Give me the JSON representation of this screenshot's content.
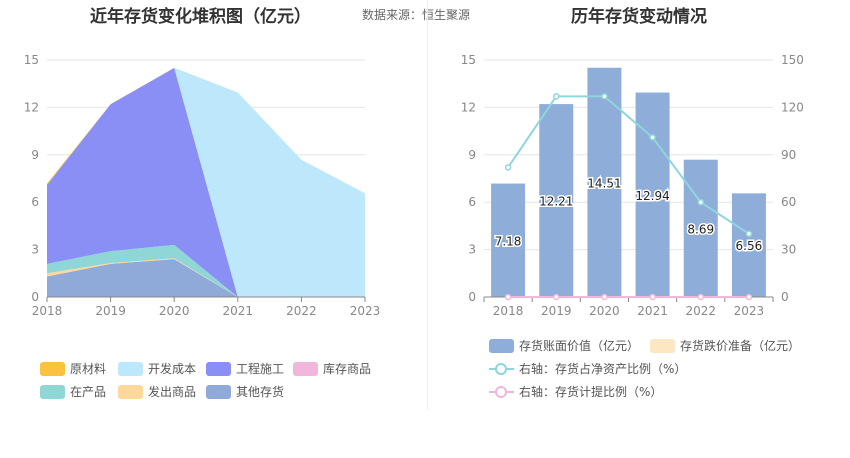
{
  "header": {
    "left_title": "近年存货变化堆积图（亿元）",
    "source": "数据来源：恒生聚源",
    "right_title": "历年存货变动情况"
  },
  "chart_data": [
    {
      "type": "area",
      "stacked": true,
      "title": "近年存货变化堆积图（亿元）",
      "x": [
        "2018",
        "2019",
        "2020",
        "2021",
        "2022",
        "2023"
      ],
      "ylim": [
        0,
        15
      ],
      "yticks": [
        "0",
        "3",
        "6",
        "9",
        "12",
        "15"
      ],
      "grid": true,
      "legend_position": "bottom",
      "series": [
        {
          "name": "其他存货",
          "color": "#8fa9d9",
          "values": [
            1.3,
            2.1,
            2.4,
            0,
            0,
            0
          ]
        },
        {
          "name": "发出商品",
          "color": "#fcd89a",
          "values": [
            0.2,
            0.05,
            0.05,
            0,
            0,
            0
          ]
        },
        {
          "name": "在产品",
          "color": "#8fd6d6",
          "values": [
            0.6,
            0.75,
            0.85,
            0,
            0,
            0
          ]
        },
        {
          "name": "库存商品",
          "color": "#f0b6dc",
          "values": [
            0,
            0,
            0,
            0,
            0,
            0
          ]
        },
        {
          "name": "工程施工",
          "color": "#8a8ff5",
          "values": [
            5.0,
            9.3,
            11.2,
            0,
            0,
            0
          ]
        },
        {
          "name": "开发成本",
          "color": "#bde8fb",
          "values": [
            0,
            0,
            0,
            12.94,
            8.69,
            6.56
          ]
        },
        {
          "name": "原材料",
          "color": "#fbc23d",
          "values": [
            0.08,
            0.01,
            0.01,
            0,
            0,
            0
          ]
        }
      ],
      "legend_order": [
        "原材料",
        "开发成本",
        "工程施工",
        "库存商品",
        "在产品",
        "发出商品",
        "其他存货"
      ]
    },
    {
      "type": "bar",
      "title": "历年存货变动情况",
      "categories": [
        "2018",
        "2019",
        "2020",
        "2021",
        "2022",
        "2023"
      ],
      "ylim": [
        0,
        15
      ],
      "yticks": [
        "0",
        "3",
        "6",
        "9",
        "12",
        "15"
      ],
      "y2lim": [
        0,
        150
      ],
      "y2ticks": [
        "0",
        "30",
        "60",
        "90",
        "120",
        "150"
      ],
      "grid": true,
      "legend_position": "bottom",
      "series": [
        {
          "name": "存货账面价值（亿元）",
          "type": "bar",
          "axis": "left",
          "color": "#8fadd9",
          "values": [
            7.18,
            12.21,
            14.51,
            12.94,
            8.69,
            6.56
          ],
          "labels": [
            "7.18",
            "12.21",
            "14.51",
            "12.94",
            "8.69",
            "6.56"
          ]
        },
        {
          "name": "存货跌价准备（亿元）",
          "type": "bar",
          "axis": "left",
          "color": "#fde7c3",
          "values": [
            0,
            0,
            0,
            0,
            0,
            0
          ]
        },
        {
          "name": "右轴：存货占净资产比例（%）",
          "type": "line",
          "axis": "right",
          "color": "#8fd6dc",
          "values": [
            82,
            127,
            127,
            101,
            60,
            40
          ]
        },
        {
          "name": "右轴：存货计提比例（%）",
          "type": "line",
          "axis": "right",
          "color": "#f0b6dc",
          "values": [
            0,
            0,
            0,
            0,
            0,
            0
          ]
        }
      ]
    }
  ]
}
